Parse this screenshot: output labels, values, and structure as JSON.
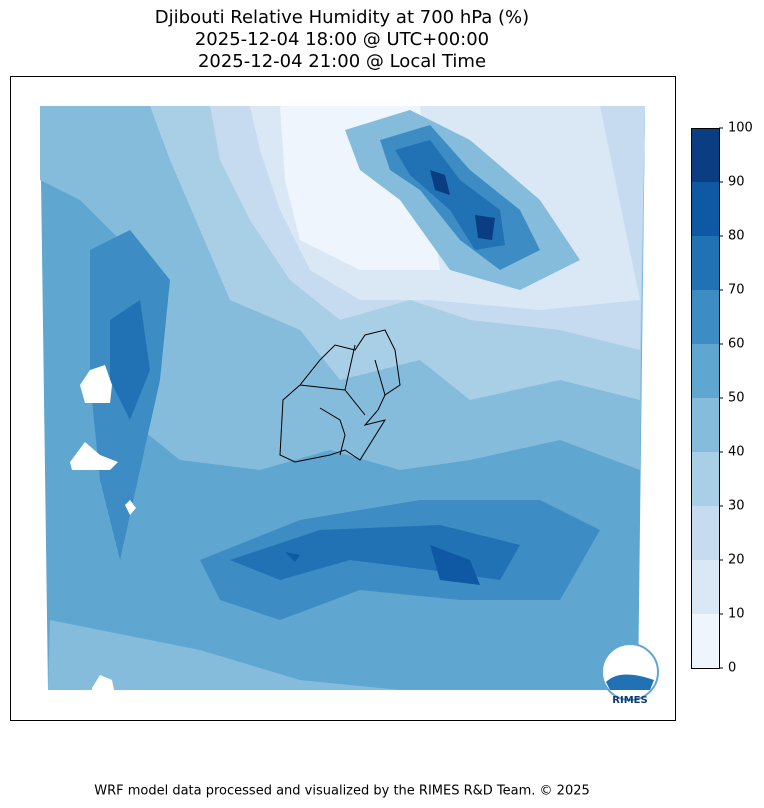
{
  "map": {
    "title_lines": [
      "Djibouti Relative Humidity at 700 hPa (%)",
      "2025-12-04 18:00 @ UTC+00:00",
      "2025-12-04 21:00 @ Local Time"
    ],
    "colorbar": {
      "ticks": [
        0,
        10,
        20,
        30,
        40,
        50,
        60,
        70,
        80,
        90,
        100
      ],
      "colors": [
        "#eef5fc",
        "#dae8f5",
        "#c6dbef",
        "#a8cfe5",
        "#85bcdc",
        "#5fa6d1",
        "#3d8dc4",
        "#2171b5",
        "#0f58a3",
        "#0a3d82"
      ]
    },
    "logo_text": "RIMES",
    "footer": "WRF model data processed and visualized by the RIMES R&D Team. © 2025"
  }
}
